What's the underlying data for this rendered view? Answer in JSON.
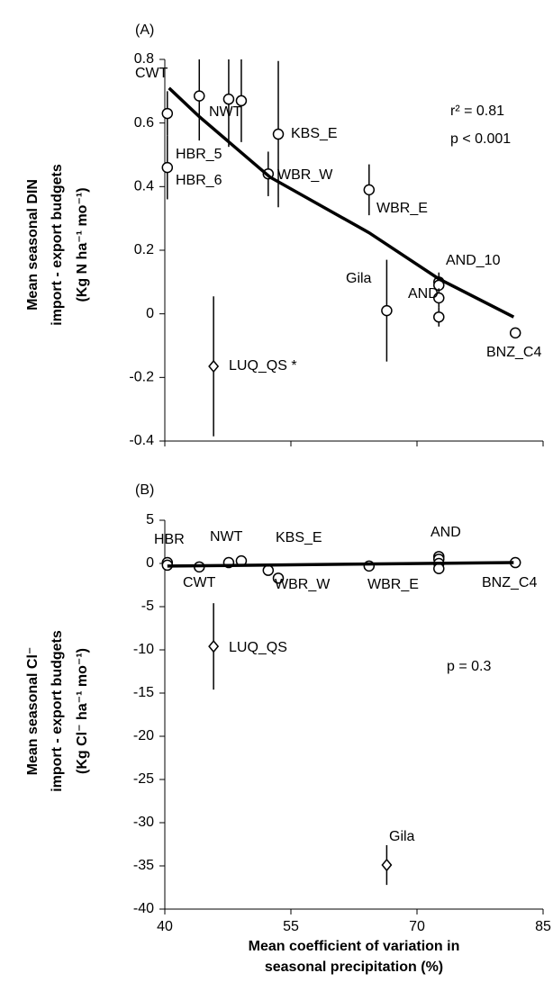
{
  "chart_data": [
    {
      "type": "scatter",
      "title": "(A)",
      "ylabel": [
        "Mean seasonal DIN",
        "import - export budgets",
        "(Kg N ha⁻¹ mo⁻¹)"
      ],
      "xlim": [
        40,
        85
      ],
      "ylim": [
        -0.4,
        0.8
      ],
      "yticks": [
        -0.4,
        -0.2,
        0,
        0.2,
        0.4,
        0.6,
        0.8
      ],
      "series": [
        {
          "marker": "circle",
          "color": "#000000",
          "x": [
            40.3,
            40.3,
            44.1,
            47.6,
            49.1,
            53.5,
            52.3,
            64.3,
            66.4,
            72.6,
            72.6,
            72.6,
            72.6,
            81.7
          ],
          "values": [
            0.63,
            0.46,
            0.685,
            0.675,
            0.67,
            0.565,
            0.44,
            0.39,
            0.01,
            0.1,
            0.09,
            0.05,
            -0.01,
            -0.06
          ],
          "errors": [
            0.07,
            0.1,
            0.14,
            0.15,
            0.13,
            0.23,
            0.07,
            0.08,
            0.16,
            0.03,
            0.03,
            0.03,
            0.03,
            null
          ]
        },
        {
          "marker": "diamond",
          "color": "#000000",
          "x": [
            45.8
          ],
          "values": [
            -0.165
          ],
          "errors": [
            0.22
          ]
        },
        {
          "marker": "line",
          "color": "#000000",
          "x": [
            40.5,
            44.1,
            52.5,
            64.3,
            72.6,
            81.5
          ],
          "values": [
            0.71,
            0.62,
            0.43,
            0.255,
            0.11,
            -0.01
          ]
        }
      ],
      "annotations": [
        "CWT",
        "NWT",
        "HBR_5",
        "HBR_6",
        "KBS_E",
        "WBR_W",
        "WBR_E",
        "Gila",
        "AND_10",
        "AND",
        "BNZ_C4",
        "LUQ_QS *",
        "r² = 0.81",
        "p < 0.001"
      ]
    },
    {
      "type": "scatter",
      "title": "(B)",
      "ylabel": [
        "Mean seasonal Cl⁻",
        "import - export budgets",
        "(Kg Cl⁻ ha⁻¹ mo⁻¹)"
      ],
      "xlabel": [
        "Mean coefficient of variation in",
        "seasonal precipitation (%)"
      ],
      "xlim": [
        40,
        85
      ],
      "xticks": [
        40,
        55,
        70,
        85
      ],
      "ylim": [
        -40,
        5
      ],
      "yticks": [
        -40,
        -35,
        -30,
        -25,
        -20,
        -15,
        -10,
        -5,
        0,
        5
      ],
      "series": [
        {
          "marker": "circle",
          "color": "#000000",
          "x": [
            40.3,
            40.3,
            44.1,
            47.6,
            49.1,
            52.3,
            53.5,
            64.3,
            72.6,
            72.6,
            72.6,
            72.6,
            81.7
          ],
          "values": [
            0.1,
            -0.2,
            -0.4,
            0.1,
            0.3,
            -0.8,
            -1.7,
            -0.3,
            0.8,
            0.5,
            0,
            -0.6,
            0.1
          ],
          "errors": [
            null,
            null,
            null,
            null,
            null,
            null,
            null,
            null,
            null,
            null,
            null,
            null,
            null
          ]
        },
        {
          "marker": "diamond",
          "color": "#000000",
          "x": [
            45.8,
            66.4
          ],
          "values": [
            -9.6,
            -34.9
          ],
          "errors": [
            5,
            2.3
          ]
        },
        {
          "marker": "line",
          "color": "#000000",
          "x": [
            40.3,
            81.5
          ],
          "values": [
            -0.3,
            0.1
          ]
        }
      ],
      "annotations": [
        "HBR",
        "NWT",
        "KBS_E",
        "CWT",
        "WBR_W",
        "WBR_E",
        "AND",
        "BNZ_C4",
        "LUQ_QS",
        "p = 0.3",
        "Gila"
      ]
    }
  ]
}
